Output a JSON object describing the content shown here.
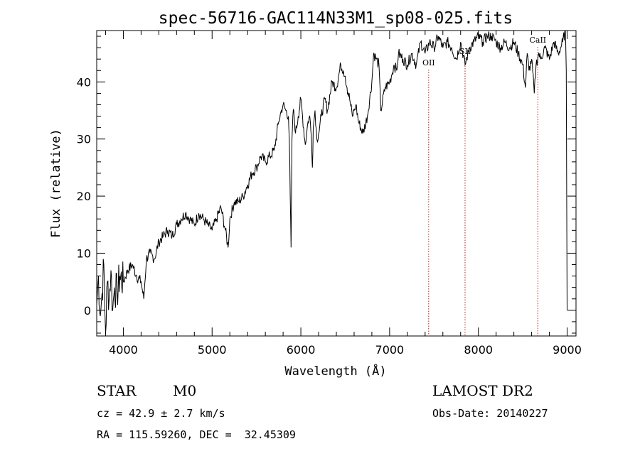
{
  "chart_data": {
    "type": "line",
    "title": "spec-56716-GAC114N33M1_sp08-025.fits",
    "xlabel": "Wavelength (Å)",
    "ylabel": "Flux (relative)",
    "xlim": [
      3700,
      9100
    ],
    "ylim": [
      -4.5,
      49
    ],
    "xticks": [
      4000,
      5000,
      6000,
      7000,
      8000,
      9000
    ],
    "yticks": [
      0,
      10,
      20,
      30,
      40
    ],
    "xtick_labels": [
      "4000",
      "5000",
      "6000",
      "7000",
      "8000",
      "9000"
    ],
    "ytick_labels": [
      "0",
      "10",
      "20",
      "30",
      "40"
    ],
    "grid": false,
    "line_color": "#000000",
    "marker_color": "#b22222",
    "series": [
      {
        "x": [
          3700,
          3720,
          3740,
          3760,
          3780,
          3800,
          3820,
          3840,
          3860,
          3880,
          3900,
          3930,
          3960,
          4000,
          4050,
          4100,
          4150,
          4200,
          4230,
          4260,
          4300,
          4350,
          4400,
          4450,
          4500,
          4550,
          4600,
          4650,
          4700,
          4750,
          4800,
          4850,
          4900,
          4950,
          5000,
          5050,
          5100,
          5150,
          5180,
          5200,
          5250,
          5300,
          5350,
          5400,
          5450,
          5500,
          5550,
          5600,
          5650,
          5700,
          5750,
          5780,
          5800,
          5830,
          5860,
          5870,
          5880,
          5890,
          5900,
          5910,
          5920,
          5940,
          5970,
          6000,
          6050,
          6080,
          6100,
          6120,
          6130,
          6140,
          6160,
          6180,
          6200,
          6230,
          6270,
          6300,
          6350,
          6400,
          6450,
          6480,
          6500,
          6520,
          6550,
          6580,
          6600,
          6620,
          6650,
          6700,
          6750,
          6800,
          6820,
          6850,
          6880,
          6900,
          6950,
          7000,
          7020,
          7050,
          7080,
          7100,
          7150,
          7200,
          7250,
          7300,
          7350,
          7400,
          7450,
          7500,
          7550,
          7600,
          7650,
          7700,
          7750,
          7800,
          7850,
          7900,
          7950,
          8000,
          8050,
          8100,
          8150,
          8200,
          8250,
          8300,
          8350,
          8400,
          8450,
          8500,
          8530,
          8550,
          8570,
          8600,
          8630,
          8650,
          8680,
          8700,
          8750,
          8800,
          8850,
          8900,
          8950,
          8980,
          8990,
          9000
        ],
        "y": [
          1,
          6,
          -1,
          3,
          8,
          -4,
          5,
          2,
          7,
          0,
          4,
          3,
          6,
          5,
          7,
          8,
          6,
          5,
          2,
          9,
          10,
          9,
          12,
          13,
          14,
          13,
          15,
          16,
          17,
          16,
          15,
          17,
          16,
          15,
          14,
          16,
          18,
          14,
          11,
          16,
          19,
          19,
          20,
          22,
          24,
          25,
          27,
          26,
          27,
          28,
          33,
          35,
          36,
          35,
          34,
          30,
          20,
          11,
          30,
          34,
          35,
          31,
          34,
          37,
          29,
          33,
          34,
          30,
          25,
          32,
          35,
          30,
          31,
          34,
          37,
          35,
          40,
          39,
          43,
          42,
          41,
          39,
          37,
          34,
          35,
          36,
          33,
          31,
          34,
          40,
          45,
          44,
          43,
          35,
          39,
          40,
          41,
          43,
          42,
          45,
          44,
          43,
          45,
          43,
          47,
          45,
          47,
          46,
          48,
          46,
          47,
          46,
          44,
          47,
          43,
          46,
          47,
          48,
          47,
          48,
          48,
          47,
          46,
          47,
          46,
          47,
          45,
          43,
          39,
          45,
          42,
          44,
          38,
          43,
          45,
          44,
          46,
          44,
          47,
          45,
          47,
          49,
          42,
          0
        ]
      }
    ],
    "lines": [
      {
        "x": 7440,
        "label": "OII"
      },
      {
        "x": 7850,
        "label": "SII"
      },
      {
        "x": 8670,
        "label": "CaII"
      }
    ],
    "info": {
      "class_label": "STAR",
      "subclass_label": "M0",
      "cz_text": "cz = 42.9 ± 2.7 km/s",
      "radec_text": "RA = 115.59260, DEC =  32.45309",
      "survey": "LAMOST DR2",
      "obs_date_text": "Obs-Date: 20140227"
    }
  }
}
